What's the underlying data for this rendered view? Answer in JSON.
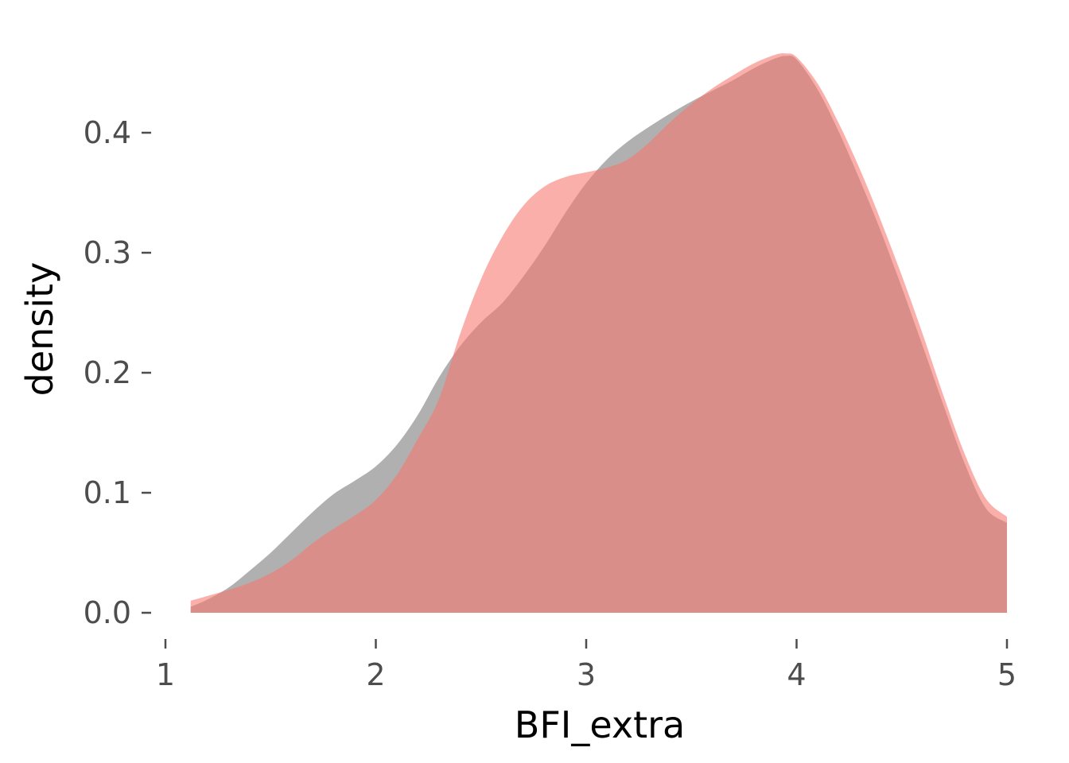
{
  "chart_data": {
    "type": "area",
    "title": "",
    "xlabel": "BFI_extra",
    "ylabel": "density",
    "xlim": [
      1,
      5
    ],
    "ylim": [
      0,
      0.47
    ],
    "x_ticks": [
      "1",
      "2",
      "3",
      "4",
      "5"
    ],
    "y_ticks": [
      "0.0",
      "0.1",
      "0.2",
      "0.3",
      "0.4"
    ],
    "grid": false,
    "legend": "none",
    "series": [
      {
        "color": "#808080",
        "opacity": 0.62,
        "x": [
          1.12,
          1.2,
          1.3,
          1.4,
          1.5,
          1.6,
          1.7,
          1.8,
          1.9,
          2.0,
          2.1,
          2.2,
          2.3,
          2.4,
          2.5,
          2.6,
          2.7,
          2.8,
          2.9,
          3.0,
          3.1,
          3.2,
          3.3,
          3.4,
          3.5,
          3.6,
          3.7,
          3.8,
          3.9,
          3.95,
          4.0,
          4.1,
          4.2,
          4.3,
          4.4,
          4.5,
          4.6,
          4.7,
          4.8,
          4.9,
          5.0
        ],
        "y": [
          0.005,
          0.011,
          0.021,
          0.035,
          0.05,
          0.067,
          0.084,
          0.099,
          0.11,
          0.122,
          0.14,
          0.165,
          0.196,
          0.222,
          0.242,
          0.258,
          0.28,
          0.305,
          0.333,
          0.358,
          0.378,
          0.393,
          0.405,
          0.416,
          0.426,
          0.435,
          0.444,
          0.454,
          0.462,
          0.464,
          0.461,
          0.436,
          0.401,
          0.361,
          0.318,
          0.271,
          0.222,
          0.172,
          0.124,
          0.087,
          0.075
        ]
      },
      {
        "color": "#f8766d",
        "opacity": 0.58,
        "x": [
          1.12,
          1.2,
          1.3,
          1.4,
          1.5,
          1.6,
          1.7,
          1.8,
          1.9,
          2.0,
          2.1,
          2.2,
          2.3,
          2.4,
          2.5,
          2.6,
          2.7,
          2.8,
          2.9,
          3.0,
          3.1,
          3.2,
          3.3,
          3.4,
          3.5,
          3.6,
          3.7,
          3.8,
          3.9,
          3.95,
          4.0,
          4.1,
          4.2,
          4.3,
          4.4,
          4.5,
          4.6,
          4.7,
          4.8,
          4.9,
          5.0
        ],
        "y": [
          0.01,
          0.014,
          0.019,
          0.025,
          0.033,
          0.044,
          0.058,
          0.07,
          0.081,
          0.094,
          0.115,
          0.145,
          0.178,
          0.232,
          0.278,
          0.313,
          0.339,
          0.355,
          0.363,
          0.367,
          0.371,
          0.378,
          0.392,
          0.409,
          0.424,
          0.437,
          0.448,
          0.458,
          0.465,
          0.466,
          0.463,
          0.441,
          0.408,
          0.37,
          0.327,
          0.281,
          0.232,
          0.18,
          0.132,
          0.095,
          0.08
        ]
      }
    ]
  }
}
